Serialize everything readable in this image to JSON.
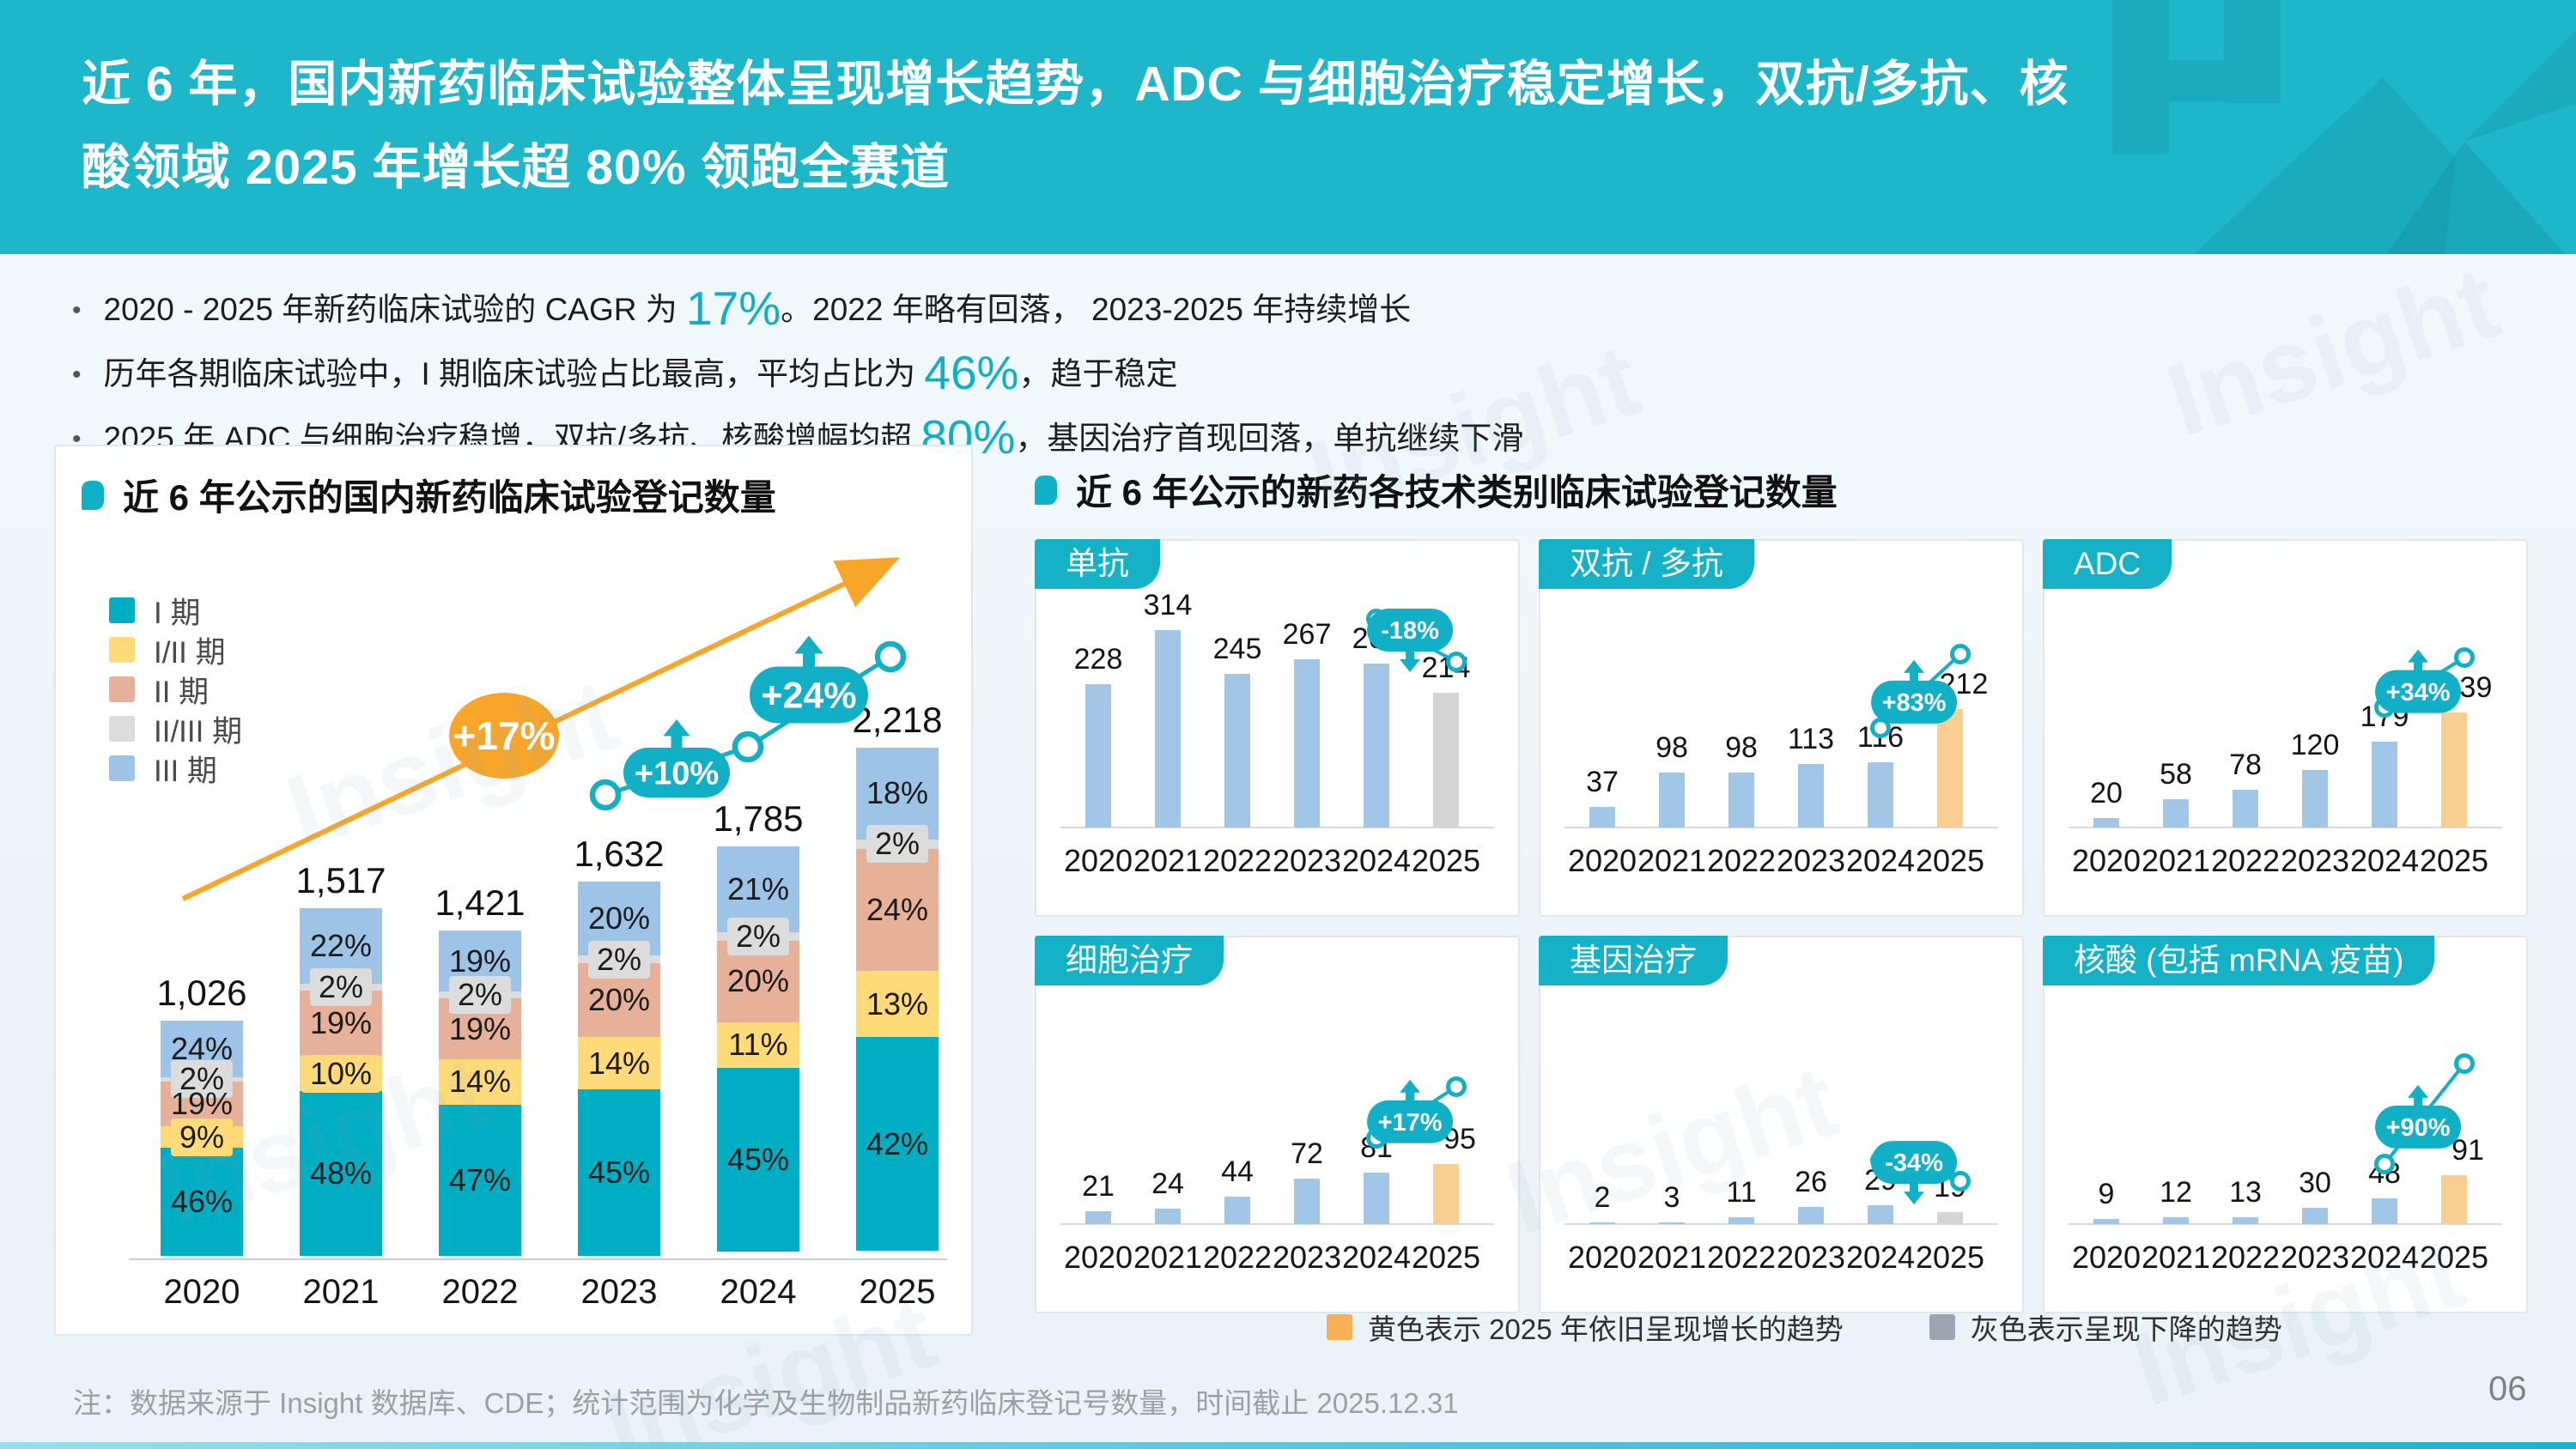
{
  "header": {
    "line1": "近 6 年，国内新药临床试验整体呈现增长趋势，ADC 与细胞治疗稳定增长，双抗/多抗、核",
    "line2": "酸领域 2025 年增长超 80% 领跑全赛道",
    "bg_color": "#1eb6c9"
  },
  "bullets": [
    {
      "pre": "2020 - 2025 年新药临床试验的 CAGR 为 ",
      "highlight": "17%",
      "post": "。2022 年略有回落， 2023-2025 年持续增长"
    },
    {
      "pre": "历年各期临床试验中，I 期临床试验占比最高，平均占比为 ",
      "highlight": "46%",
      "post": "，趋于稳定"
    },
    {
      "pre": "2025 年 ADC 与细胞治疗稳增，双抗/多抗、核酸增幅均超 ",
      "highlight": "80%",
      "post": "，基因治疗首现回落，单抗继续下滑"
    }
  ],
  "left_chart": {
    "title": "近 6 年公示的国内新药临床试验登记数量"
  },
  "right_section": {
    "title": "近 6 年公示的新药各技术类别临床试验登记数量",
    "legend": [
      {
        "label": "黄色表示 2025 年依旧呈现增长的趋势",
        "color": "#F6B158"
      },
      {
        "label": "灰色表示呈现下降的趋势",
        "color": "#9CA6B2"
      }
    ]
  },
  "footer": {
    "note": "注：数据来源于 Insight 数据库、CDE；统计范围为化学及生物制品新药临床登记号数量，时间截止 2025.12.31",
    "page_number": "06"
  },
  "watermark_text": "Insight",
  "accent_color": "#12B0C6",
  "chart_data": [
    {
      "type": "bar",
      "variant": "stacked-percent",
      "title": "近 6 年公示的国内新药临床试验登记数量",
      "categories": [
        "2020",
        "2021",
        "2022",
        "2023",
        "2024",
        "2025"
      ],
      "totals": [
        1026,
        1517,
        1421,
        1632,
        1785,
        2218
      ],
      "total_labels": [
        "1,026",
        "1,517",
        "1,421",
        "1,632",
        "1,785",
        "2,218"
      ],
      "series": [
        {
          "name": "I 期",
          "color": "#00AEC4",
          "values_pct": [
            46,
            48,
            47,
            45,
            45,
            42
          ]
        },
        {
          "name": "I/II 期",
          "color": "#FFDA79",
          "values_pct": [
            9,
            10,
            14,
            14,
            11,
            13
          ]
        },
        {
          "name": "II 期",
          "color": "#E6B198",
          "values_pct": [
            19,
            19,
            19,
            20,
            20,
            24
          ]
        },
        {
          "name": "II/III 期",
          "color": "#DCDCDC",
          "values_pct": [
            2,
            2,
            2,
            2,
            2,
            2
          ]
        },
        {
          "name": "III 期",
          "color": "#9DC3E6",
          "values_pct": [
            24,
            22,
            19,
            20,
            21,
            18
          ]
        }
      ],
      "annotations": {
        "cagr": {
          "label": "+17%",
          "color": "#F7A62A"
        },
        "yoy": [
          {
            "label": "+10%",
            "from": "2023",
            "to": "2024"
          },
          {
            "label": "+24%",
            "from": "2024",
            "to": "2025"
          }
        ]
      },
      "legend_position": "left",
      "grid": false
    },
    {
      "type": "bar",
      "title": "单抗",
      "categories": [
        "2020",
        "2021",
        "2022",
        "2023",
        "2024",
        "2025"
      ],
      "values": [
        228,
        314,
        245,
        267,
        261,
        214
      ],
      "bar_colors": [
        "#A2C6E5",
        "#A2C6E5",
        "#A2C6E5",
        "#A2C6E5",
        "#A2C6E5",
        "#D4D4D4"
      ],
      "trend": {
        "label": "-18%",
        "direction": "down"
      }
    },
    {
      "type": "bar",
      "title": "双抗 / 多抗",
      "categories": [
        "2020",
        "2021",
        "2022",
        "2023",
        "2024",
        "2025"
      ],
      "values": [
        37,
        98,
        98,
        113,
        116,
        212
      ],
      "bar_colors": [
        "#A2C6E5",
        "#A2C6E5",
        "#A2C6E5",
        "#A2C6E5",
        "#A2C6E5",
        "#F8CE93"
      ],
      "trend": {
        "label": "+83%",
        "direction": "up"
      }
    },
    {
      "type": "bar",
      "title": "ADC",
      "categories": [
        "2020",
        "2021",
        "2022",
        "2023",
        "2024",
        "2025"
      ],
      "values": [
        20,
        58,
        78,
        120,
        179,
        239
      ],
      "bar_colors": [
        "#A2C6E5",
        "#A2C6E5",
        "#A2C6E5",
        "#A2C6E5",
        "#A2C6E5",
        "#F8CE93"
      ],
      "trend": {
        "label": "+34%",
        "direction": "up"
      }
    },
    {
      "type": "bar",
      "title": "细胞治疗",
      "categories": [
        "2020",
        "2021",
        "2022",
        "2023",
        "2024",
        "2025"
      ],
      "values": [
        21,
        24,
        44,
        72,
        81,
        95
      ],
      "bar_colors": [
        "#A2C6E5",
        "#A2C6E5",
        "#A2C6E5",
        "#A2C6E5",
        "#A2C6E5",
        "#F8CE93"
      ],
      "trend": {
        "label": "+17%",
        "direction": "up"
      }
    },
    {
      "type": "bar",
      "title": "基因治疗",
      "categories": [
        "2020",
        "2021",
        "2022",
        "2023",
        "2024",
        "2025"
      ],
      "values": [
        2,
        3,
        11,
        26,
        29,
        19
      ],
      "bar_colors": [
        "#A2C6E5",
        "#A2C6E5",
        "#A2C6E5",
        "#A2C6E5",
        "#A2C6E5",
        "#D4D4D4"
      ],
      "trend": {
        "label": "-34%",
        "direction": "down"
      }
    },
    {
      "type": "bar",
      "title": "核酸 (包括 mRNA 疫苗)",
      "categories": [
        "2020",
        "2021",
        "2022",
        "2023",
        "2024",
        "2025"
      ],
      "values": [
        9,
        12,
        13,
        30,
        48,
        91
      ],
      "bar_colors": [
        "#A2C6E5",
        "#A2C6E5",
        "#A2C6E5",
        "#A2C6E5",
        "#A2C6E5",
        "#F8CE93"
      ],
      "trend": {
        "label": "+90%",
        "direction": "up",
        "steep": true
      }
    }
  ]
}
